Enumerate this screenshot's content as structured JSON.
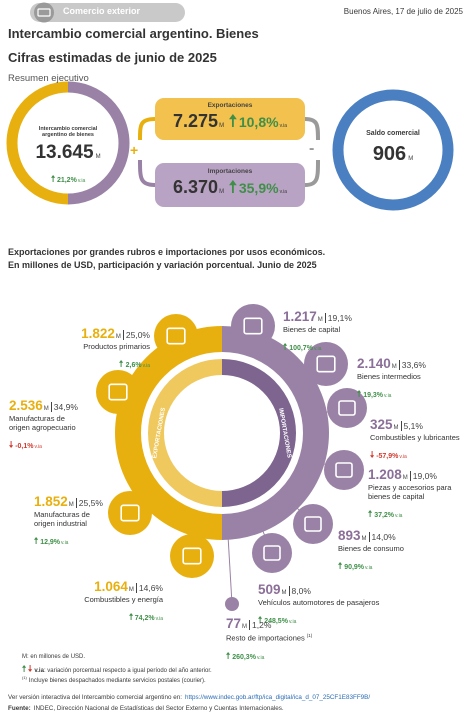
{
  "header": {
    "badge": "Comercio exterior",
    "date": "Buenos Aires, 17 de julio de 2025",
    "title": "Intercambio comercial argentino. Bienes",
    "subtitle": "Cifras estimadas de junio de 2025",
    "section": "Resumen ejecutivo"
  },
  "summary": {
    "intercambio": {
      "label": [
        "Intercambio comercial",
        "argentino de bienes"
      ],
      "value": "13.645",
      "unit": "M",
      "change": "21,2%",
      "change_unit": "v.ia"
    },
    "exportaciones": {
      "label": "Exportaciones",
      "value": "7.275",
      "unit": "M",
      "change": "10,8%",
      "change_unit": "v.ia"
    },
    "importaciones": {
      "label": "Importaciones",
      "value": "6.370",
      "unit": "M",
      "change": "35,9%",
      "change_unit": "v.ia"
    },
    "saldo": {
      "label": "Saldo comercial",
      "value": "906",
      "unit": "M"
    },
    "plus": "+",
    "minus": "-"
  },
  "breakdown": {
    "title": [
      "Exportaciones por grandes rubros e importaciones por usos económicos.",
      "En millones de USD, participación y variación porcentual. Junio de 2025"
    ],
    "exports_label": "EXPORTACIONES",
    "imports_label": "IMPORTACIONES",
    "exports": [
      {
        "value": "1.822",
        "unit": "M",
        "share": "25,0%",
        "label": [
          "Productos primarios"
        ],
        "change": "2,6%",
        "change_unit": "v.ia"
      },
      {
        "value": "2.536",
        "unit": "M",
        "share": "34,9%",
        "label": [
          "Manufacturas de",
          "origen agropecuario"
        ],
        "change": "-0,1%",
        "change_unit": "v.ia"
      },
      {
        "value": "1.852",
        "unit": "M",
        "share": "25,5%",
        "label": [
          "Manufacturas de",
          "origen industrial"
        ],
        "change": "12,9%",
        "change_unit": "v.ia"
      },
      {
        "value": "1.064",
        "unit": "M",
        "share": "14,6%",
        "label": [
          "Combustibles y energía"
        ],
        "change": "74,2%",
        "change_unit": "v.ia"
      }
    ],
    "imports": [
      {
        "value": "1.217",
        "unit": "M",
        "share": "19,1%",
        "label": [
          "Bienes de capital"
        ],
        "change": "100,7%",
        "change_unit": "v.ia"
      },
      {
        "value": "2.140",
        "unit": "M",
        "share": "33,6%",
        "label": [
          "Bienes intermedios"
        ],
        "change": "19,3%",
        "change_unit": "v.ia"
      },
      {
        "value": "325",
        "unit": "M",
        "share": "5,1%",
        "label": [
          "Combustibles y lubricantes"
        ],
        "change": "-57,9%",
        "change_unit": "v.ia"
      },
      {
        "value": "1.208",
        "unit": "M",
        "share": "19,0%",
        "label": [
          "Piezas y accesorios para",
          "bienes de capital"
        ],
        "change": "37,2%",
        "change_unit": "v.ia"
      },
      {
        "value": "893",
        "unit": "M",
        "share": "14,0%",
        "label": [
          "Bienes de consumo"
        ],
        "change": "90,9%",
        "change_unit": "v.ia"
      },
      {
        "value": "509",
        "unit": "M",
        "share": "8,0%",
        "label": [
          "Vehículos automotores de pasajeros"
        ],
        "change": "248,5%",
        "change_unit": "v.ia"
      },
      {
        "value": "77",
        "unit": "M",
        "share": "1,2%",
        "label": [
          "Resto de importaciones"
        ],
        "note_ref": "(1)",
        "change": "260,3%",
        "change_unit": "v.ia"
      }
    ]
  },
  "notes": {
    "m": "M: en millones de USD.",
    "via_abbr": "v.ia",
    "via_text": ": variación porcentual respecto a igual período del año anterior.",
    "ref": "(1)",
    "ref_text": "Incluye bienes despachados mediante servicios postales (courier)."
  },
  "footer": {
    "interactive_text": "Ver versión interactiva del Intercambio comercial argentino en:",
    "url": "https://www.indec.gob.ar/ftp/ica_digital/ica_d_07_25CF1E83FF9B/",
    "source_label": "Fuente:",
    "source_text": "INDEC, Dirección Nacional de Estadísticas del Sector Externo y Cuentas Internacionales."
  }
}
